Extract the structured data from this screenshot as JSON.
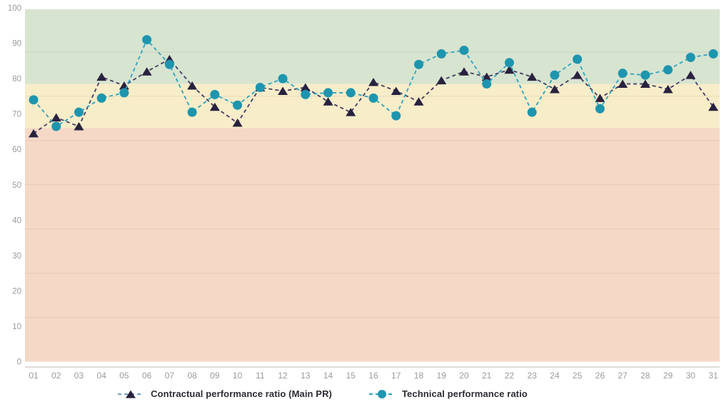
{
  "chart_data": {
    "type": "line",
    "title": "",
    "x": [
      "01",
      "02",
      "03",
      "04",
      "05",
      "06",
      "07",
      "08",
      "09",
      "10",
      "11",
      "12",
      "13",
      "14",
      "15",
      "16",
      "17",
      "18",
      "19",
      "20",
      "21",
      "22",
      "23",
      "24",
      "25",
      "26",
      "27",
      "28",
      "29",
      "30",
      "31"
    ],
    "yticks": [
      0,
      10,
      20,
      30,
      40,
      50,
      60,
      70,
      80,
      90,
      100
    ],
    "ylim": [
      0,
      100
    ],
    "gridlines": [
      12.5,
      25,
      37.5,
      50,
      62.5,
      75,
      87.5
    ],
    "grid": "horizontal only, faint",
    "legend_position": "bottom-center",
    "axis_label_color": "#9b9b9b",
    "axis_line_color": "#d6d0cd",
    "grid_color": "rgba(90,60,40,0.10)",
    "legend_text_color": "#2c2c34",
    "bands": [
      {
        "name": "good-zone",
        "from": 78.5,
        "to": 100,
        "color": "#d7e4d0"
      },
      {
        "name": "warning-zone",
        "from": 66,
        "to": 78.5,
        "color": "#f8edc9"
      },
      {
        "name": "critical-zone",
        "from": 0,
        "to": 66,
        "color": "#f6d8c7"
      }
    ],
    "series": [
      {
        "name": "Contractual performance ratio (Main PR)",
        "marker": "triangle",
        "marker_color": "#28223f",
        "line_color": "#433c63",
        "legend_line_color": "#6f9dc0",
        "values": [
          64.5,
          69,
          66.5,
          80.5,
          78,
          82,
          85.5,
          78,
          72,
          67.5,
          77.5,
          76.5,
          77.5,
          73.5,
          70.5,
          79,
          76.5,
          73.5,
          79.5,
          82,
          80.5,
          82.5,
          80.5,
          77,
          81,
          74.5,
          78.5,
          78.5,
          77,
          81,
          72
        ]
      },
      {
        "name": "Technical performance ratio",
        "marker": "circle",
        "marker_color": "#1e95ae",
        "line_color": "#2ba4c0",
        "legend_line_color": "#2ba4c0",
        "values": [
          74,
          66.5,
          70.5,
          74.5,
          76,
          91,
          84,
          70.5,
          75.5,
          72.5,
          77.5,
          80,
          75.5,
          76,
          76,
          74.5,
          69.5,
          84,
          87,
          88,
          78.5,
          84.5,
          70.5,
          81,
          85.5,
          71.5,
          81.5,
          81,
          82.5,
          86,
          87
        ]
      }
    ]
  }
}
